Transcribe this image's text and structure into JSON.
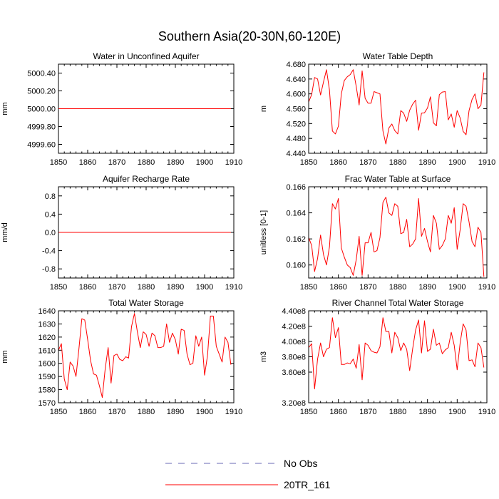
{
  "figure": {
    "title": "Southern Asia(20-30N,60-120E)",
    "legend": [
      {
        "label": "No Obs",
        "color": "#6a6ab4",
        "style": "dashed"
      },
      {
        "label": "20TR_161",
        "color": "#ff0000",
        "style": "solid"
      }
    ],
    "legend_placement": "bottom-center"
  },
  "chart_data": [
    {
      "type": "line",
      "title": "Water in Unconfined Aquifer",
      "xlabel": "",
      "ylabel": "mm",
      "xlim": [
        1850,
        1910
      ],
      "ylim": [
        4999.5,
        5000.5
      ],
      "xticks": [
        1850,
        1860,
        1870,
        1880,
        1890,
        1900,
        1910
      ],
      "yticks": [
        4999.6,
        4999.8,
        5000.0,
        5000.2,
        5000.4
      ],
      "ytick_labels": [
        "4999.60",
        "4999.80",
        "5000.00",
        "5000.20",
        "5000.40"
      ],
      "series": [
        {
          "name": "20TR_161",
          "color": "#ff0000",
          "x_start": 1850,
          "x_step": 1,
          "values": [
            5000,
            5000,
            5000,
            5000,
            5000,
            5000,
            5000,
            5000,
            5000,
            5000,
            5000,
            5000,
            5000,
            5000,
            5000,
            5000,
            5000,
            5000,
            5000,
            5000,
            5000,
            5000,
            5000,
            5000,
            5000,
            5000,
            5000,
            5000,
            5000,
            5000,
            5000,
            5000,
            5000,
            5000,
            5000,
            5000,
            5000,
            5000,
            5000,
            5000,
            5000,
            5000,
            5000,
            5000,
            5000,
            5000,
            5000,
            5000,
            5000,
            5000,
            5000,
            5000,
            5000,
            5000,
            5000,
            5000,
            5000,
            5000,
            5000,
            5000
          ]
        }
      ]
    },
    {
      "type": "line",
      "title": "Water Table Depth",
      "xlabel": "",
      "ylabel": "m",
      "xlim": [
        1850,
        1910
      ],
      "ylim": [
        4.44,
        4.68
      ],
      "xticks": [
        1850,
        1860,
        1870,
        1880,
        1890,
        1900,
        1910
      ],
      "yticks": [
        4.44,
        4.48,
        4.52,
        4.56,
        4.6,
        4.64,
        4.68
      ],
      "ytick_labels": [
        "4.440",
        "4.480",
        "4.520",
        "4.560",
        "4.600",
        "4.640",
        "4.680"
      ],
      "series": [
        {
          "name": "20TR_161",
          "color": "#ff0000",
          "x_start": 1850,
          "x_step": 1,
          "values": [
            4.578,
            4.598,
            4.644,
            4.64,
            4.597,
            4.632,
            4.665,
            4.61,
            4.5,
            4.492,
            4.513,
            4.6,
            4.636,
            4.646,
            4.652,
            4.665,
            4.62,
            4.57,
            4.662,
            4.588,
            4.575,
            4.575,
            4.606,
            4.603,
            4.6,
            4.5,
            4.465,
            4.508,
            4.519,
            4.501,
            4.492,
            4.555,
            4.548,
            4.526,
            4.556,
            4.572,
            4.583,
            4.502,
            4.548,
            4.549,
            4.562,
            4.592,
            4.522,
            4.514,
            4.598,
            4.605,
            4.606,
            4.53,
            4.546,
            4.51,
            4.555,
            4.535,
            4.499,
            4.49,
            4.555,
            4.585,
            4.6,
            4.56,
            4.57,
            4.658
          ]
        }
      ]
    },
    {
      "type": "line",
      "title": "Aquifer Recharge Rate",
      "xlabel": "",
      "ylabel": "mm/d",
      "xlim": [
        1850,
        1910
      ],
      "ylim": [
        -1,
        1
      ],
      "xticks": [
        1850,
        1860,
        1870,
        1880,
        1890,
        1900,
        1910
      ],
      "yticks": [
        -0.8,
        -0.4,
        0,
        0.4,
        0.8
      ],
      "ytick_labels": [
        "-0.8",
        "-0.4",
        "0.0",
        "0.4",
        "0.8"
      ],
      "series": [
        {
          "name": "20TR_161",
          "color": "#ff0000",
          "x_start": 1850,
          "x_step": 1,
          "values": [
            0,
            0,
            0,
            0,
            0,
            0,
            0,
            0,
            0,
            0,
            0,
            0,
            0,
            0,
            0,
            0,
            0,
            0,
            0,
            0,
            0,
            0,
            0,
            0,
            0,
            0,
            0,
            0,
            0,
            0,
            0,
            0,
            0,
            0,
            0,
            0,
            0,
            0,
            0,
            0,
            0,
            0,
            0,
            0,
            0,
            0,
            0,
            0,
            0,
            0,
            0,
            0,
            0,
            0,
            0,
            0,
            0,
            0,
            0,
            0
          ]
        }
      ]
    },
    {
      "type": "line",
      "title": "Frac Water Table at Surface",
      "xlabel": "",
      "ylabel": "unitless [0-1]",
      "xlim": [
        1850,
        1910
      ],
      "ylim": [
        0.159,
        0.166
      ],
      "xticks": [
        1850,
        1860,
        1870,
        1880,
        1890,
        1900,
        1910
      ],
      "yticks": [
        0.16,
        0.162,
        0.164,
        0.166
      ],
      "ytick_labels": [
        "0.160",
        "0.162",
        "0.164",
        "0.166"
      ],
      "series": [
        {
          "name": "20TR_161",
          "color": "#ff0000",
          "x_start": 1850,
          "x_step": 1,
          "values": [
            0.1621,
            0.1615,
            0.1595,
            0.1605,
            0.1623,
            0.1608,
            0.16,
            0.1614,
            0.1647,
            0.1643,
            0.1651,
            0.1613,
            0.1606,
            0.16,
            0.1598,
            0.1592,
            0.1604,
            0.1622,
            0.1592,
            0.1617,
            0.1617,
            0.1625,
            0.161,
            0.1611,
            0.1621,
            0.1648,
            0.1652,
            0.164,
            0.1638,
            0.1647,
            0.1645,
            0.1624,
            0.1625,
            0.1635,
            0.1614,
            0.1616,
            0.162,
            0.1651,
            0.1622,
            0.1628,
            0.1618,
            0.161,
            0.1638,
            0.1632,
            0.1612,
            0.1615,
            0.162,
            0.1638,
            0.1632,
            0.1644,
            0.1612,
            0.1627,
            0.1647,
            0.1645,
            0.1633,
            0.1618,
            0.1614,
            0.1629,
            0.1625,
            0.1591
          ]
        }
      ]
    },
    {
      "type": "line",
      "title": "Total Water Storage",
      "xlabel": "",
      "ylabel": "mm",
      "xlim": [
        1850,
        1910
      ],
      "ylim": [
        1570,
        1640
      ],
      "xticks": [
        1850,
        1860,
        1870,
        1880,
        1890,
        1900,
        1910
      ],
      "yticks": [
        1570,
        1580,
        1590,
        1600,
        1610,
        1620,
        1630,
        1640
      ],
      "ytick_labels": [
        "1570",
        "1580",
        "1590",
        "1600",
        "1610",
        "1620",
        "1630",
        "1640"
      ],
      "series": [
        {
          "name": "20TR_161",
          "color": "#ff0000",
          "x_start": 1850,
          "x_step": 1,
          "values": [
            1610,
            1615,
            1588,
            1580,
            1601,
            1598,
            1590,
            1611,
            1634,
            1633,
            1618,
            1602,
            1592,
            1591,
            1583,
            1574,
            1596,
            1612,
            1585,
            1606,
            1607,
            1603,
            1602,
            1605,
            1604,
            1628,
            1638,
            1624,
            1612,
            1624,
            1622,
            1613,
            1623,
            1621,
            1612,
            1612,
            1613,
            1630,
            1616,
            1623,
            1618,
            1607,
            1626,
            1625,
            1607,
            1599,
            1600,
            1621,
            1613,
            1620,
            1591,
            1606,
            1636,
            1636,
            1613,
            1607,
            1601,
            1620,
            1616,
            1599
          ]
        }
      ]
    },
    {
      "type": "line",
      "title": "River Channel Total Water Storage",
      "xlabel": "",
      "ylabel": "m3",
      "xlim": [
        1850,
        1910
      ],
      "ylim": [
        320000000.0,
        440000000.0
      ],
      "xticks": [
        1850,
        1860,
        1870,
        1880,
        1890,
        1900,
        1910
      ],
      "yticks": [
        320000000.0,
        360000000.0,
        380000000.0,
        400000000.0,
        420000000.0,
        440000000.0
      ],
      "ytick_labels": [
        "3.20e8",
        "3.60e8",
        "3.80e8",
        "4.00e8",
        "4.20e8",
        "4.40e8"
      ],
      "series": [
        {
          "name": "20TR_161",
          "color": "#ff0000",
          "x_start": 1850,
          "x_step": 1,
          "values": [
            392000000.0,
            397000000.0,
            338000000.0,
            377000000.0,
            398000000.0,
            380000000.0,
            390000000.0,
            392000000.0,
            431000000.0,
            405000000.0,
            418000000.0,
            370000000.0,
            370000000.0,
            372000000.0,
            371000000.0,
            377000000.0,
            365000000.0,
            396000000.0,
            350000000.0,
            398000000.0,
            395000000.0,
            388000000.0,
            386000000.0,
            385000000.0,
            393000000.0,
            431000000.0,
            413000000.0,
            413000000.0,
            385000000.0,
            412000000.0,
            405000000.0,
            388000000.0,
            398000000.0,
            390000000.0,
            362000000.0,
            390000000.0,
            415000000.0,
            428000000.0,
            385000000.0,
            427000000.0,
            387000000.0,
            390000000.0,
            416000000.0,
            395000000.0,
            398000000.0,
            384000000.0,
            389000000.0,
            392000000.0,
            412000000.0,
            395000000.0,
            363000000.0,
            398000000.0,
            423000000.0,
            415000000.0,
            375000000.0,
            376000000.0,
            367000000.0,
            398000000.0,
            392000000.0,
            366000000.0
          ]
        }
      ]
    }
  ]
}
